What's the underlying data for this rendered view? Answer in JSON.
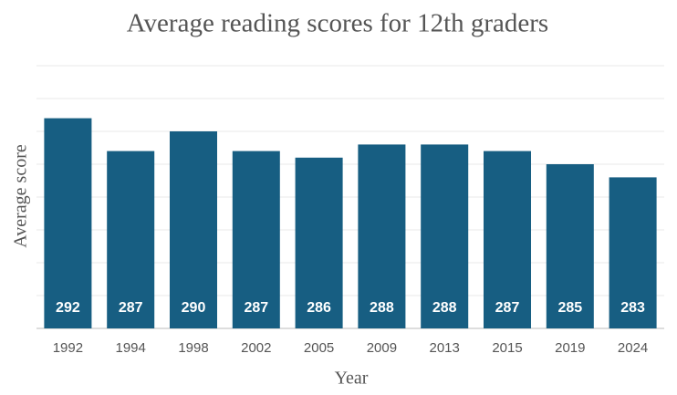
{
  "chart_data": {
    "type": "bar",
    "title": "Average reading scores for 12th graders",
    "x_label": "Year",
    "y_label": "Average score",
    "categories": [
      "1992",
      "1994",
      "1998",
      "2002",
      "2005",
      "2009",
      "2013",
      "2015",
      "2019",
      "2024"
    ],
    "values": [
      292,
      287,
      290,
      287,
      286,
      288,
      288,
      287,
      285,
      283
    ],
    "color": "#175e82",
    "ylim": [
      260,
      300
    ],
    "yticks": [
      260,
      265,
      270,
      275,
      280,
      285,
      290,
      295,
      300
    ],
    "grid": true
  }
}
